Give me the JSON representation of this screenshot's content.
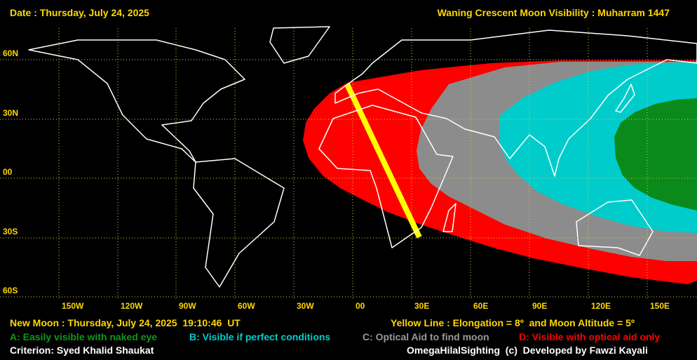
{
  "header": {
    "date": "Date : Thursday, July 24, 2025",
    "title": "Waning Crescent Moon Visibility : Muharram 1447"
  },
  "grid": {
    "latitudes": [
      "60N",
      "30N",
      "00",
      "30S",
      "60S"
    ],
    "longitudes": [
      "150W",
      "120W",
      "90W",
      "60W",
      "30W",
      "00",
      "30E",
      "60E",
      "90E",
      "120E",
      "150E"
    ]
  },
  "footer": {
    "new_moon": "New Moon : Thursday, July 24, 2025  19:10:46  UT",
    "yellow_line": "Yellow Line : Elongation = 8º  and Moon Altitude = 5º",
    "legend": [
      "A: Easily visible with naked eye",
      "B: Visible if perfect conditions",
      "C: Optical Aid to find moon",
      "D: Visible with optical aid only"
    ],
    "criterion": "Criterion: Syed Khalid Shaukat",
    "credit": "OmegaHilalSighting  (c)  Developed by Fawzi Kayali"
  }
}
